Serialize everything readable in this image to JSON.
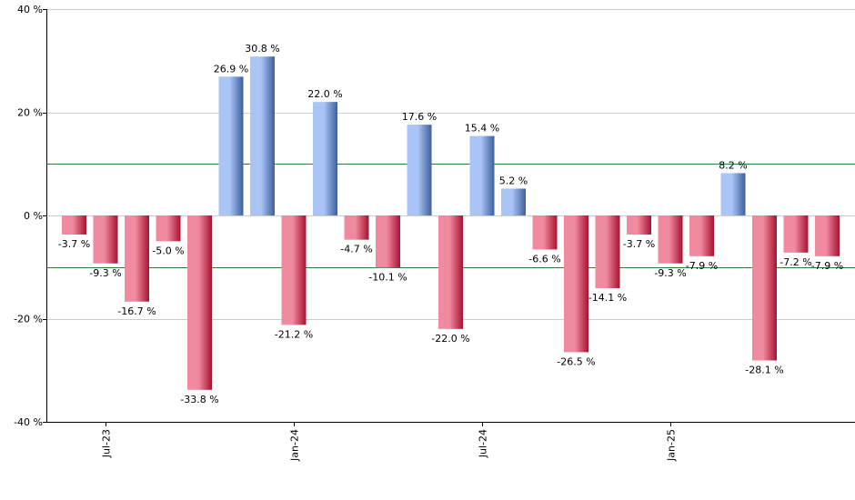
{
  "chart_data": {
    "type": "bar",
    "title": "",
    "xlabel": "",
    "ylabel": "",
    "ylim": [
      -40,
      40
    ],
    "yticks": [
      40,
      20,
      0,
      -20,
      -40
    ],
    "ytick_labels": [
      "40 %",
      "20 %",
      "0 %",
      "-20 %",
      "-40 %"
    ],
    "xtick_labels": [
      {
        "label": "Jul-23",
        "index": 1
      },
      {
        "label": "Jan-24",
        "index": 7
      },
      {
        "label": "Jul-24",
        "index": 13
      },
      {
        "label": "Jan-25",
        "index": 19
      }
    ],
    "reference_lines": [
      10,
      -10
    ],
    "values": [
      -3.7,
      -9.3,
      -16.7,
      -5.0,
      -33.8,
      26.9,
      30.8,
      -21.2,
      22.0,
      -4.7,
      -10.1,
      17.6,
      -22.0,
      15.4,
      5.2,
      -6.6,
      -26.5,
      -14.1,
      -3.7,
      -9.3,
      -7.9,
      8.2,
      -28.1,
      -7.2,
      -7.9
    ],
    "value_labels": [
      "-3.7 %",
      "-9.3 %",
      "-16.7 %",
      "-5.0 %",
      "-33.8 %",
      "26.9 %",
      "30.8 %",
      "-21.2 %",
      "22.0 %",
      "-4.7 %",
      "-10.1 %",
      "17.6 %",
      "-22.0 %",
      "15.4 %",
      "5.2 %",
      "-6.6 %",
      "-26.5 %",
      "-14.1 %",
      "-3.7 %",
      "-9.3 %",
      "-7.9 %",
      "8.2 %",
      "-28.1 %",
      "-7.2 %",
      "-7.9 %"
    ],
    "grid": true,
    "colors": {
      "positive_light": "#a9c4f5",
      "positive_dark": "#3d5f9c",
      "negative_light": "#f08aa0",
      "negative_dark": "#a8122f",
      "reference_line": "#2e7d32",
      "grid": "#cccccc",
      "axis": "#000000"
    }
  }
}
